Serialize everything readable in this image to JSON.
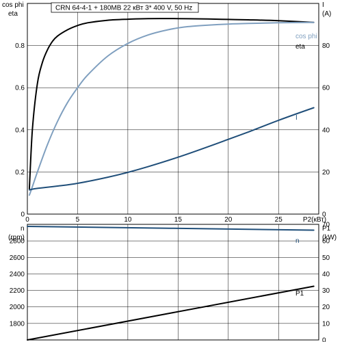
{
  "chart_data": [
    {
      "type": "line",
      "title": "CRN 64-4-1 + 180MB    22 кВт    3* 400 V, 50 Hz",
      "xlabel": "P2(кВт)",
      "ylabel_left_top": "cos phi",
      "ylabel_left_bottom": "eta",
      "ylabel_right_top": "I",
      "ylabel_right_unit": "(A)",
      "xlim": [
        0,
        29
      ],
      "ylim_left": [
        0,
        1.0
      ],
      "ylim_right": [
        0,
        100
      ],
      "x_ticks": [
        "0",
        "5",
        "10",
        "15",
        "20",
        "25"
      ],
      "y_left_ticks": [
        "0",
        "0.2",
        "0.4",
        "0.6",
        "0.8"
      ],
      "y_right_ticks": [
        "0",
        "20",
        "40",
        "60",
        "80"
      ],
      "grid": true,
      "series": [
        {
          "name": "eta",
          "axis": "left",
          "color": "#000000",
          "x": [
            0.2,
            0.5,
            1,
            1.5,
            2,
            2.5,
            3,
            4,
            5,
            6,
            8,
            10,
            12,
            15,
            18,
            20,
            22,
            25,
            28.5
          ],
          "y": [
            0.12,
            0.4,
            0.62,
            0.72,
            0.78,
            0.82,
            0.845,
            0.875,
            0.895,
            0.908,
            0.92,
            0.925,
            0.928,
            0.928,
            0.926,
            0.924,
            0.922,
            0.918,
            0.91
          ]
        },
        {
          "name": "cos phi",
          "axis": "left",
          "color": "#7f9fbf",
          "x": [
            0.2,
            0.5,
            1,
            2,
            3,
            4,
            5,
            6,
            8,
            10,
            12,
            14,
            16,
            18,
            20,
            22,
            25,
            28.5
          ],
          "y": [
            0.09,
            0.13,
            0.2,
            0.33,
            0.44,
            0.53,
            0.6,
            0.66,
            0.75,
            0.81,
            0.85,
            0.875,
            0.89,
            0.897,
            0.902,
            0.905,
            0.908,
            0.91
          ]
        },
        {
          "name": "I",
          "axis": "right",
          "color": "#1f4e79",
          "x": [
            0.2,
            1,
            3,
            5,
            8,
            10,
            12,
            15,
            18,
            20,
            22,
            25,
            28.5
          ],
          "y": [
            11.5,
            12.2,
            13.3,
            14.6,
            17.5,
            19.8,
            22.5,
            27,
            32,
            35.5,
            39,
            44.5,
            50.5
          ]
        }
      ]
    },
    {
      "type": "line",
      "xlabel": "",
      "ylabel_left_top": "n",
      "ylabel_left_unit": "(rpm)",
      "ylabel_right_top": "P1",
      "ylabel_right_unit": "(kW)",
      "xlim": [
        0,
        29
      ],
      "ylim_left": [
        1600,
        3000
      ],
      "ylim_right": [
        0,
        70
      ],
      "y_left_ticks": [
        "1800",
        "2000",
        "2200",
        "2400",
        "2600",
        "2800"
      ],
      "y_right_ticks": [
        "0",
        "10",
        "20",
        "30",
        "40",
        "50",
        "60",
        "70"
      ],
      "grid": true,
      "series": [
        {
          "name": "n",
          "axis": "left",
          "color": "#1f4e79",
          "x": [
            0,
            28.5
          ],
          "y": [
            2975,
            2930
          ]
        },
        {
          "name": "P1",
          "axis": "right",
          "color": "#000000",
          "x": [
            0,
            28.5
          ],
          "y": [
            0,
            32.5
          ]
        }
      ]
    }
  ]
}
